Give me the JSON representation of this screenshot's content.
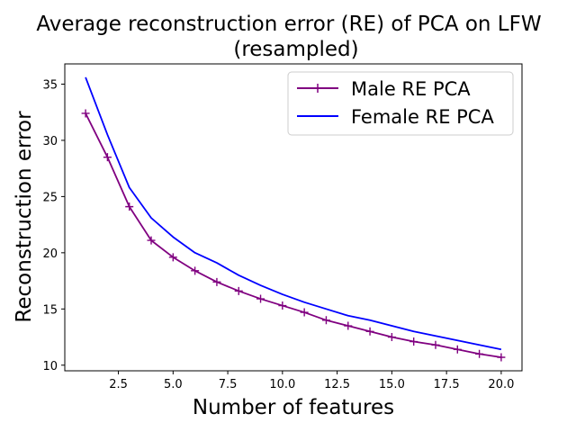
{
  "chart_data": {
    "type": "line",
    "title_line1": "Average reconstruction error (RE) of PCA on LFW",
    "title_line2": "(resampled)",
    "xlabel": "Number of features",
    "ylabel": "Reconstruction error",
    "xlim": [
      0.05,
      20.95
    ],
    "ylim": [
      9.5,
      36.8
    ],
    "xticks": [
      2.5,
      5.0,
      7.5,
      10.0,
      12.5,
      15.0,
      17.5,
      20.0
    ],
    "xtick_labels": [
      "2.5",
      "5.0",
      "7.5",
      "10.0",
      "12.5",
      "15.0",
      "17.5",
      "20.0"
    ],
    "yticks": [
      10,
      15,
      20,
      25,
      30,
      35
    ],
    "ytick_labels": [
      "10",
      "15",
      "20",
      "25",
      "30",
      "35"
    ],
    "grid": false,
    "legend_position": "top-right",
    "x": [
      1,
      2,
      3,
      4,
      5,
      6,
      7,
      8,
      9,
      10,
      11,
      12,
      13,
      14,
      15,
      16,
      17,
      18,
      19,
      20
    ],
    "series": [
      {
        "name": "Male RE PCA",
        "color": "#800080",
        "marker": "+",
        "values": [
          32.4,
          28.5,
          24.1,
          21.1,
          19.6,
          18.4,
          17.4,
          16.6,
          15.9,
          15.3,
          14.7,
          14.0,
          13.5,
          13.0,
          12.5,
          12.1,
          11.8,
          11.4,
          11.0,
          10.7
        ]
      },
      {
        "name": "Female RE PCA",
        "color": "#0000ff",
        "marker": "",
        "values": [
          35.6,
          30.5,
          25.8,
          23.1,
          21.4,
          20.0,
          19.1,
          18.0,
          17.1,
          16.3,
          15.6,
          15.0,
          14.4,
          14.0,
          13.5,
          13.0,
          12.6,
          12.2,
          11.8,
          11.4
        ]
      }
    ]
  }
}
